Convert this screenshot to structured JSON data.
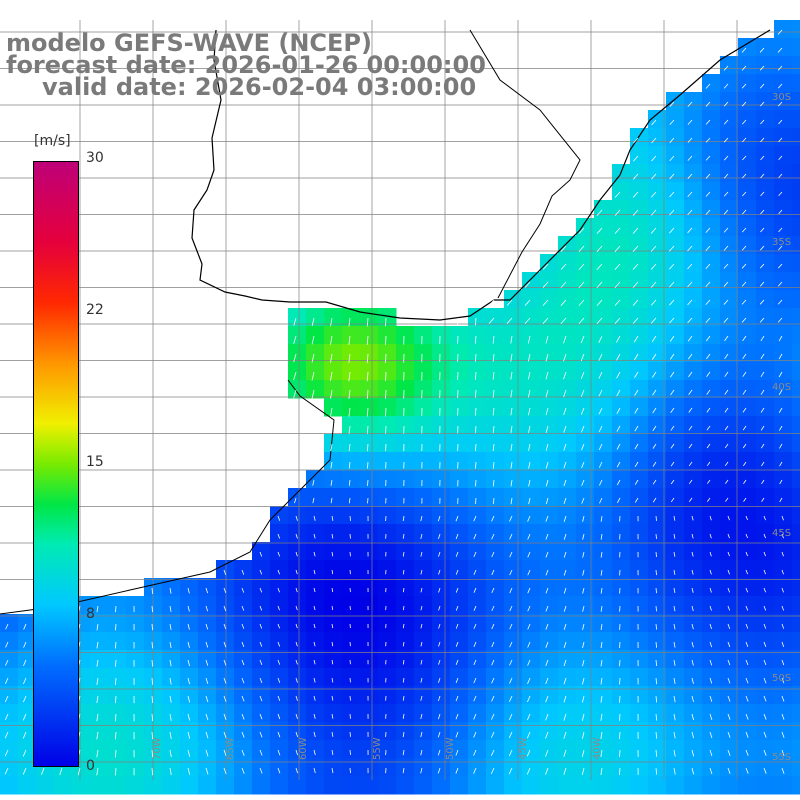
{
  "header": {
    "model": "modelo GEFS-WAVE (NCEP)",
    "forecast_date": "forecast date: 2026-01-26 00:00:00",
    "valid_date": "valid date: 2026-02-04 03:00:00"
  },
  "colorbar": {
    "unit": "[m/s]",
    "ticks": [
      "30",
      "22",
      "15",
      "8",
      "0"
    ]
  },
  "grid": {
    "lon_labels": [
      "70W",
      "65W",
      "60W",
      "55W",
      "50W",
      "45W",
      "40W"
    ],
    "lat_labels": [
      "30S",
      "35S",
      "40S",
      "45S",
      "50S",
      "55S"
    ]
  },
  "colors": {
    "land": "#ffffff",
    "coast": "#000000",
    "gridline": "#808080",
    "arrow": "#ffffff"
  }
}
